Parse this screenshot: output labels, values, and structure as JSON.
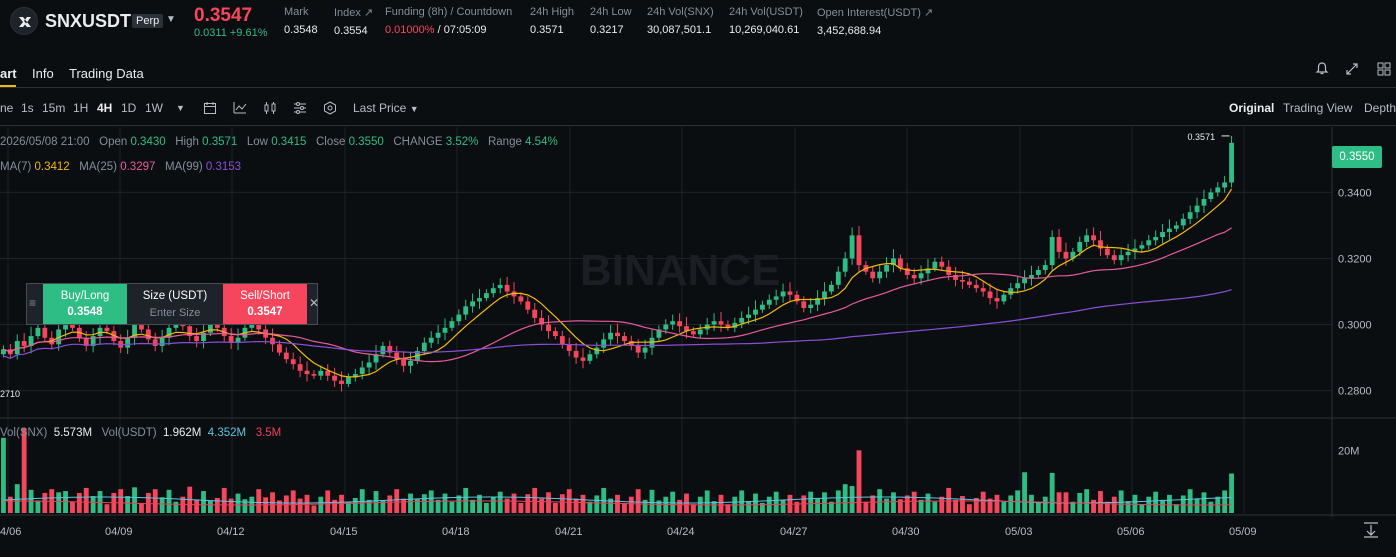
{
  "header": {
    "symbol": "SNXUSDT",
    "contract_type": "Perp",
    "last_price": "0.3547",
    "change": "0.0311 +9.61%",
    "stats": [
      {
        "label": "Mark",
        "value": "0.3548"
      },
      {
        "label": "Index ↗",
        "value": "0.3554"
      },
      {
        "label": "Funding (8h) / Countdown",
        "value_funding": "0.01000%",
        "value_countdown": "/ 07:05:09"
      },
      {
        "label": "24h High",
        "value": "0.3571"
      },
      {
        "label": "24h Low",
        "value": "0.3217"
      },
      {
        "label": "24h Vol(SNX)",
        "value": "30,087,501.1"
      },
      {
        "label": "24h Vol(USDT)",
        "value": "10,269,040.61"
      },
      {
        "label": "Open Interest(USDT) ↗",
        "value": "3,452,688.94"
      }
    ]
  },
  "tabs": [
    "art",
    "Info",
    "Trading Data"
  ],
  "toolbar": {
    "intervals": [
      "ne",
      "1s",
      "15m",
      "1H",
      "4H",
      "1D",
      "1W"
    ],
    "active_interval": "4H",
    "price_type": "Last Price",
    "views": [
      "Original",
      "Trading View",
      "Depth"
    ],
    "active_view": "Original"
  },
  "legend": {
    "date": "2026/05/08 21:00",
    "open_label": "Open",
    "open": "0.3430",
    "high_label": "High",
    "high": "0.3571",
    "low_label": "Low",
    "low": "0.3415",
    "close_label": "Close",
    "close": "0.3550",
    "change_label": "CHANGE",
    "change": "3.52%",
    "range_label": "Range",
    "range": "4.54%",
    "ma7_label": "MA(7)",
    "ma7": "0.3412",
    "ma25_label": "MA(25)",
    "ma25": "0.3297",
    "ma99_label": "MA(99)",
    "ma99": "0.3153",
    "vol_label": "Vol(SNX)",
    "vol_snx": "5.573M",
    "vol_usdt_label": "Vol(USDT)",
    "vol_usdt": "1.962M",
    "vol_ma1": "4.352M",
    "vol_ma2": "3.5M"
  },
  "current_price_tag": "0.3550",
  "high_marker": "0.3571",
  "low_marker": "2710",
  "watermark": "BINANCE",
  "quick_trade": {
    "buy_label": "Buy/Long",
    "buy_price": "0.3548",
    "size_label": "Size (USDT)",
    "size_placeholder": "Enter Size",
    "sell_label": "Sell/Short",
    "sell_price": "0.3547"
  },
  "colors": {
    "up": "#2ebd85",
    "down": "#f6465d",
    "ma7": "#f0b90b",
    "ma25": "#e85a9f",
    "ma99": "#8a4fd6",
    "vol_ma1": "#5dc5e0",
    "vol_ma2": "#e8425c",
    "accent": "#f0b90b"
  },
  "chart_data": {
    "type": "candlestick",
    "y_ticks": [
      "0.3550",
      "0.3400",
      "0.3200",
      "0.3000",
      "0.2800"
    ],
    "vol_ticks": [
      "20M"
    ],
    "x_ticks": [
      "4/06",
      "04/09",
      "04/12",
      "04/15",
      "04/18",
      "04/21",
      "04/24",
      "04/27",
      "04/30",
      "05/03",
      "05/06",
      "05/09"
    ],
    "ylim": [
      0.272,
      0.3598
    ],
    "candle_closes": [
      0.2925,
      0.291,
      0.295,
      0.2935,
      0.2965,
      0.299,
      0.296,
      0.294,
      0.2985,
      0.301,
      0.299,
      0.296,
      0.2935,
      0.2965,
      0.299,
      0.298,
      0.295,
      0.293,
      0.296,
      0.3,
      0.2985,
      0.2955,
      0.2935,
      0.296,
      0.299,
      0.301,
      0.2995,
      0.2965,
      0.295,
      0.2975,
      0.3,
      0.299,
      0.2965,
      0.2945,
      0.296,
      0.299,
      0.3005,
      0.2985,
      0.296,
      0.294,
      0.2915,
      0.2895,
      0.288,
      0.286,
      0.285,
      0.2845,
      0.286,
      0.2845,
      0.283,
      0.282,
      0.284,
      0.285,
      0.287,
      0.2885,
      0.291,
      0.2935,
      0.2915,
      0.2895,
      0.2875,
      0.289,
      0.292,
      0.2945,
      0.296,
      0.2975,
      0.299,
      0.301,
      0.303,
      0.3055,
      0.307,
      0.308,
      0.3095,
      0.311,
      0.312,
      0.31,
      0.3085,
      0.307,
      0.3045,
      0.302,
      0.3,
      0.298,
      0.2965,
      0.294,
      0.292,
      0.29,
      0.289,
      0.291,
      0.293,
      0.2955,
      0.2975,
      0.2965,
      0.295,
      0.2935,
      0.2915,
      0.293,
      0.296,
      0.2985,
      0.3,
      0.301,
      0.2995,
      0.298,
      0.297,
      0.2985,
      0.3,
      0.301,
      0.3,
      0.299,
      0.3005,
      0.302,
      0.303,
      0.3045,
      0.306,
      0.3075,
      0.3085,
      0.31,
      0.309,
      0.307,
      0.305,
      0.306,
      0.308,
      0.31,
      0.312,
      0.316,
      0.32,
      0.327,
      0.318,
      0.316,
      0.314,
      0.316,
      0.318,
      0.32,
      0.317,
      0.315,
      0.314,
      0.3155,
      0.317,
      0.319,
      0.3175,
      0.315,
      0.3135,
      0.313,
      0.312,
      0.311,
      0.31,
      0.308,
      0.307,
      0.309,
      0.311,
      0.3125,
      0.314,
      0.315,
      0.3165,
      0.318,
      0.3265,
      0.322,
      0.32,
      0.322,
      0.325,
      0.327,
      0.3255,
      0.323,
      0.321,
      0.3195,
      0.321,
      0.322,
      0.323,
      0.324,
      0.3255,
      0.3265,
      0.328,
      0.329,
      0.33,
      0.332,
      0.334,
      0.336,
      0.338,
      0.34,
      0.3415,
      0.343,
      0.355
    ]
  }
}
